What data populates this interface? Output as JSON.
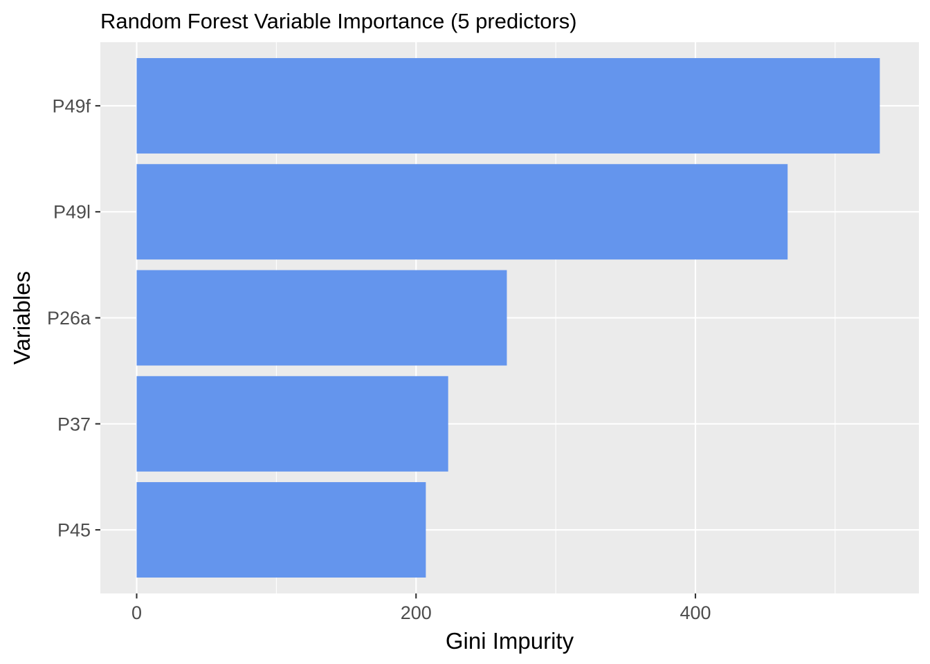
{
  "chart_data": {
    "type": "bar",
    "orientation": "horizontal",
    "title": "Random Forest Variable Importance (5 predictors)",
    "xlabel": "Gini Impurity",
    "ylabel": "Variables",
    "categories": [
      "P49f",
      "P49l",
      "P26a",
      "P37",
      "P45"
    ],
    "values": [
      532,
      466,
      265,
      223,
      207
    ],
    "xlim": [
      -26,
      560
    ],
    "xticks": [
      0,
      200,
      400
    ],
    "xtick_labels": [
      "0",
      "200",
      "400"
    ],
    "bar_color": "#6495ED",
    "panel_background": "#EBEBEB",
    "grid": true,
    "legend": "none"
  }
}
